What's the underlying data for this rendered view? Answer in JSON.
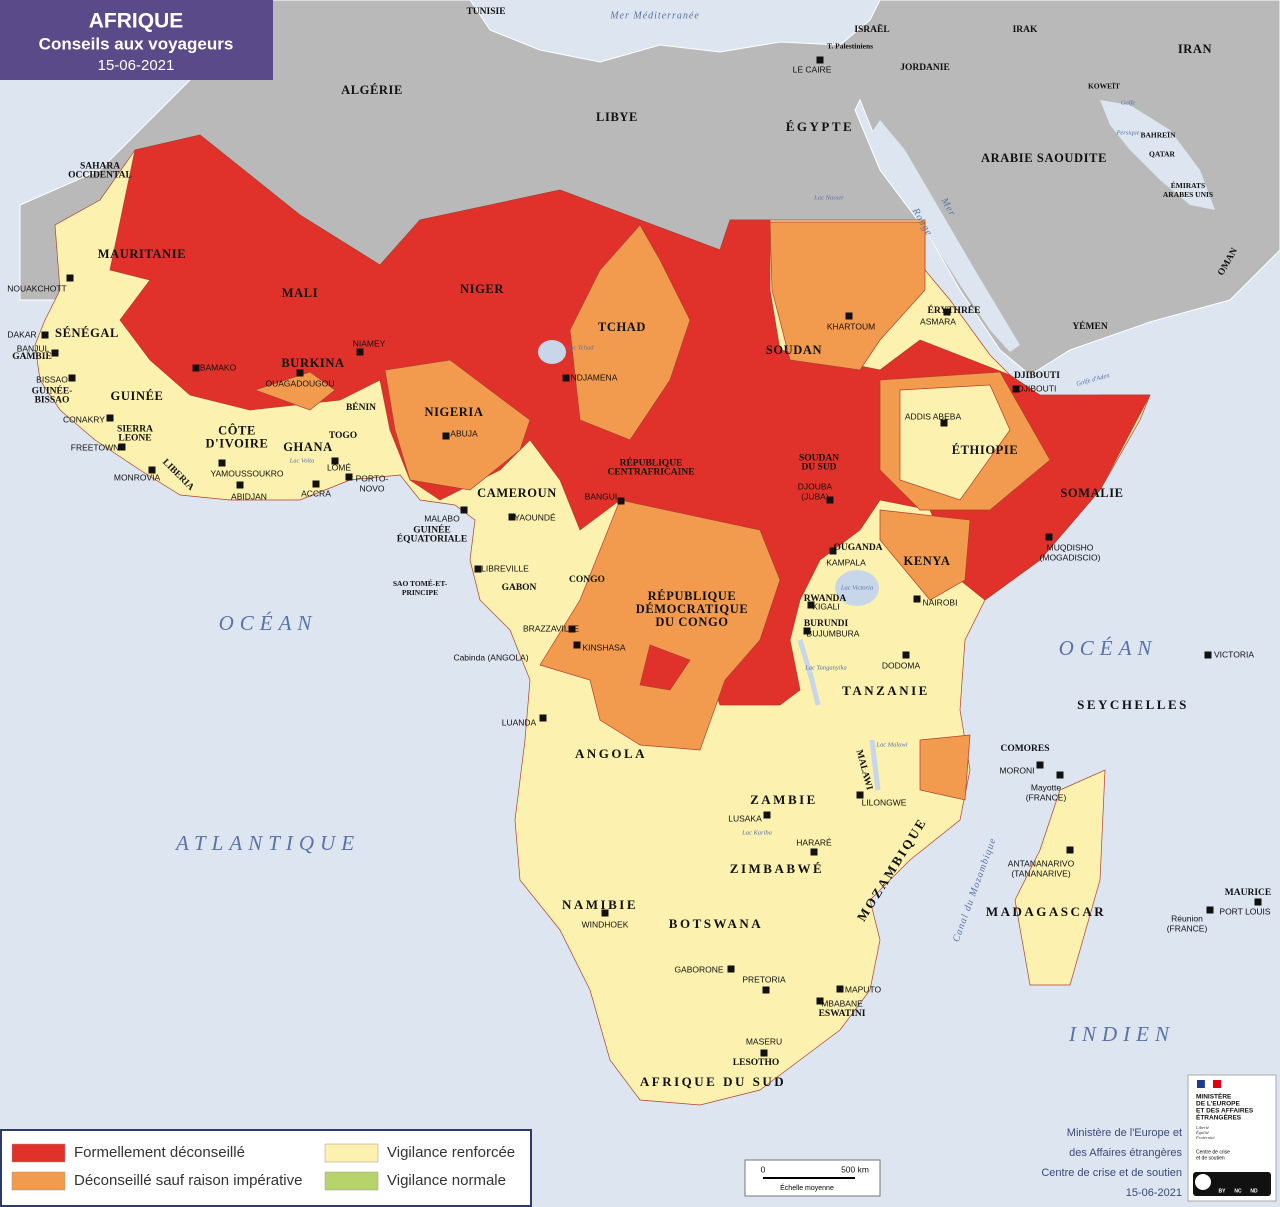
{
  "header": {
    "title": "AFRIQUE",
    "subtitle": "Conseils aux voyageurs",
    "date": "15-06-2021"
  },
  "legend": [
    {
      "label": "Formellement déconseillé",
      "color": "#e0312a"
    },
    {
      "label": "Déconseillé sauf raison impérative",
      "color": "#f29a4e"
    },
    {
      "label": "Vigilance renforcée",
      "color": "#fcf1ae"
    },
    {
      "label": "Vigilance normale",
      "color": "#b6d46a"
    }
  ],
  "countries": [
    "TUNISIE",
    "ALGÉRIE",
    "LIBYE",
    "ÉGYPTE",
    "ISRAËL",
    "T. Palestiniens",
    "JORDANIE",
    "IRAK",
    "IRAN",
    "KOWEÏT",
    "BAHREÏN",
    "QATAR",
    [
      "ÉMIRATS",
      "ARABES UNIS"
    ],
    "ARABIE SAOUDITE",
    "OMAN",
    "YÉMEN",
    [
      "SAHARA",
      "OCCIDENTAL"
    ],
    "MAURITANIE",
    "MALI",
    "NIGER",
    "TCHAD",
    "SOUDAN",
    "ÉRYTHRÉE",
    "DJIBOUTI",
    "ÉTHIOPIE",
    "SOMALIE",
    "SÉNÉGAL",
    "GAMBIE",
    [
      "GUINÉE-",
      "BISSAO"
    ],
    "GUINÉE",
    [
      "SIERRA",
      "LEONE"
    ],
    "LIBERIA",
    [
      "CÔTE",
      "D'IVOIRE"
    ],
    "BURKINA",
    "GHANA",
    "TOGO",
    "BÉNIN",
    "NIGERIA",
    "CAMEROUN",
    [
      "RÉPUBLIQUE",
      "CENTRAFRICAINE"
    ],
    [
      "SOUDAN",
      "DU SUD"
    ],
    [
      "GUINÉE",
      "ÉQUATORIALE"
    ],
    [
      "SAO TOMÉ-ET-",
      "PRINCIPE"
    ],
    "GABON",
    "CONGO",
    [
      "RÉPUBLIQUE",
      "DÉMOCRATIQUE",
      "DU CONGO"
    ],
    "OUGANDA",
    "KENYA",
    "RWANDA",
    "BURUNDI",
    "TANZANIE",
    "ANGOLA",
    "ZAMBIE",
    "MALAWI",
    "MOZAMBIQUE",
    "ZIMBABWÉ",
    "NAMIBIE",
    "BOTSWANA",
    "ESWATINI",
    "LESOTHO",
    "AFRIQUE DU SUD",
    "MADAGASCAR",
    "COMORES",
    "SEYCHELLES",
    "MAURICE"
  ],
  "capitals": [
    "NOUAKCHOTT",
    "DAKAR",
    "BANJUL",
    "BISSAO",
    "CONAKRY",
    "FREETOWN",
    "MONROVIA",
    "BAMAKO",
    "OUAGADOUGOU",
    "NIAMEY",
    "ABUJA",
    "NDJAMENA",
    "YAMOUSSOUKRO",
    "ABIDJAN",
    "ACCRA",
    "LOMÉ",
    [
      "PORTO-",
      "NOVO"
    ],
    "MALABO",
    "YAOUNDÉ",
    "BANGUI",
    "KHARTOUM",
    "ASMARA",
    "DJIBOUTI",
    "ADDIS ABEBA",
    [
      "DJOUBA",
      "(JUBA)"
    ],
    [
      "MUQDISHO",
      "(MOGADISCIO)"
    ],
    "KAMPALA",
    "NAIROBI",
    "KIGALI",
    "BUJUMBURA",
    "DODOMA",
    "LIBREVILLE",
    "BRAZZAVILLE",
    "KINSHASA",
    "Cabinda (ANGOLA)",
    "LUANDA",
    "LUSAKA",
    "LILONGWE",
    "HARARÉ",
    "MORONI",
    [
      "Mayotte",
      "(FRANCE)"
    ],
    [
      "ANTANANARIVO",
      "(TANANARIVE)"
    ],
    "VICTORIA",
    "PORT LOUIS",
    [
      "Réunion",
      "(FRANCE)"
    ],
    "WINDHOEK",
    "GABORONE",
    "PRETORIA",
    "MAPUTO",
    "MBABANE",
    "MASERU",
    "LE CAIRE"
  ],
  "waters": [
    "Mer Méditerranée",
    "OCÉAN",
    "ATLANTIQUE",
    "OCÉAN",
    "INDIEN",
    [
      "Mer",
      "Rouge"
    ],
    "Golfe d'Aden",
    [
      "Golfe",
      "Persique"
    ],
    "Canal du Mozambique",
    "Lac Tchad",
    "Lac Victoria",
    "Lac Tanganyika",
    "Lac Malawi",
    "Lac Volta",
    "Lac Kariba",
    "Lac Nasser"
  ],
  "scale": {
    "start": "0",
    "end": "500 km",
    "caption": "Échelle moyenne"
  },
  "credits": [
    "Ministère de l'Europe et",
    "des Affaires étrangères",
    "Centre de crise et de soutien",
    "15-06-2021"
  ],
  "logo": {
    "lines": [
      "MINISTÈRE",
      "DE L'EUROPE",
      "ET DES AFFAIRES",
      "ÉTRANGÈRES"
    ],
    "motto": [
      "Liberté",
      "Égalité",
      "Fraternité"
    ],
    "service": [
      "Centre de crise",
      "et de soutien"
    ],
    "license": [
      "BY",
      "NC",
      "ND"
    ]
  }
}
